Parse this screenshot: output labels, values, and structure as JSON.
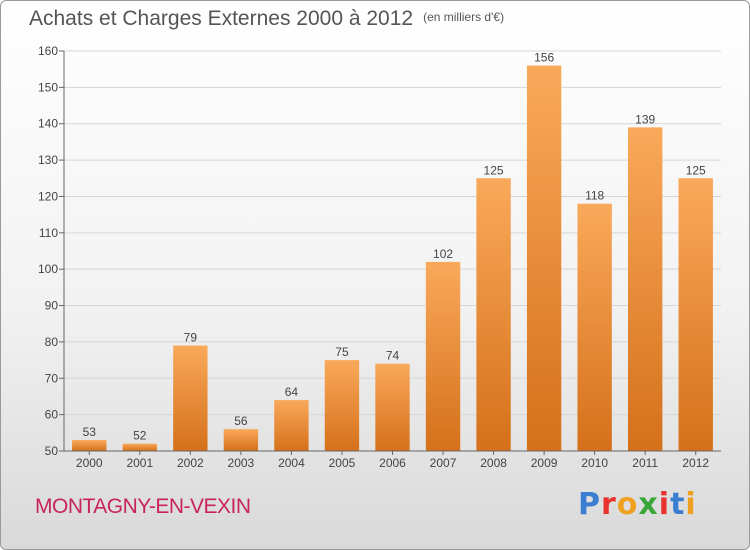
{
  "header": {
    "title": "Achats et Charges Externes 2000 à 2012",
    "subtitle": "(en milliers d'€)"
  },
  "footer": {
    "commune": "MONTAGNY-EN-VEXIN",
    "brand": "Proxiti",
    "brand_letters": [
      {
        "ch": "P",
        "color": "#3a7dd1"
      },
      {
        "ch": "r",
        "color": "#e8322b"
      },
      {
        "ch": "o",
        "color": "#f0a020"
      },
      {
        "ch": "x",
        "color": "#3aa63a"
      },
      {
        "ch": "i",
        "color": "#e8322b"
      },
      {
        "ch": "t",
        "color": "#3a7dd1"
      },
      {
        "ch": "i",
        "color": "#f0a020"
      }
    ]
  },
  "chart_data": {
    "type": "bar",
    "categories": [
      "2000",
      "2001",
      "2002",
      "2003",
      "2004",
      "2005",
      "2006",
      "2007",
      "2008",
      "2009",
      "2010",
      "2011",
      "2012"
    ],
    "values": [
      53,
      52,
      79,
      56,
      64,
      75,
      74,
      102,
      125,
      156,
      118,
      139,
      125
    ],
    "title": "Achats et Charges Externes 2000 à 2012",
    "ylim": [
      50,
      160
    ],
    "yticks": [
      50,
      60,
      70,
      80,
      90,
      100,
      110,
      120,
      130,
      140,
      150,
      160
    ],
    "grid": true,
    "bar_color": "#f07f1e"
  }
}
